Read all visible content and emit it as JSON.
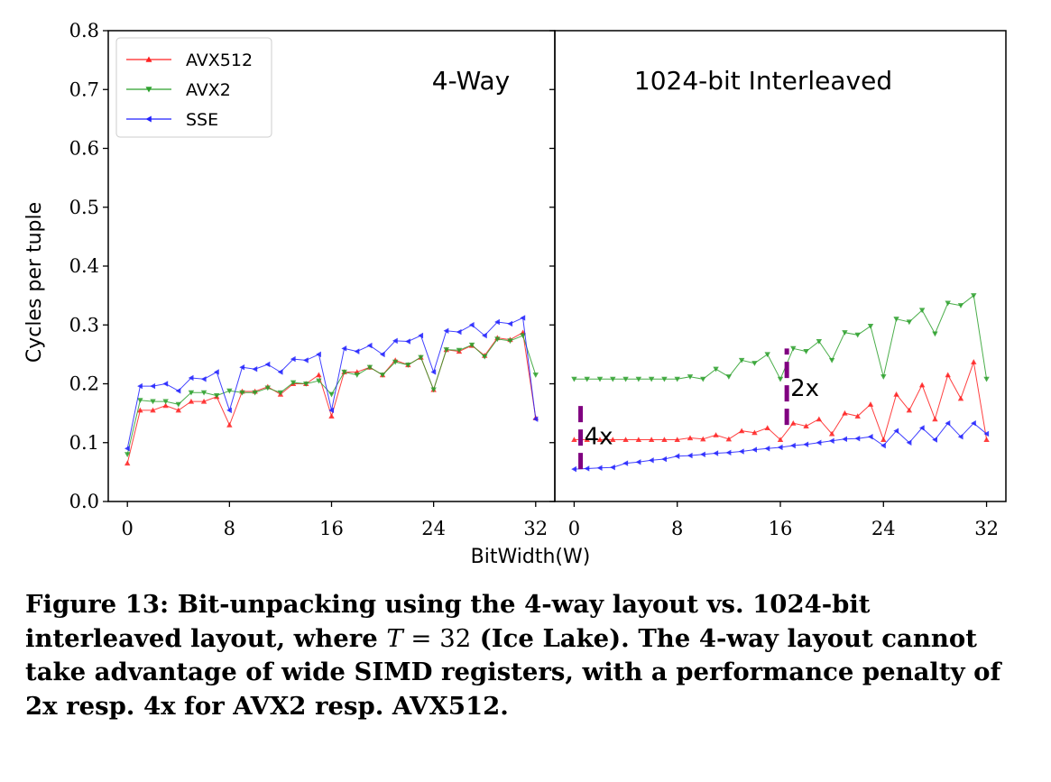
{
  "chart_data": {
    "type": "line",
    "ylabel": "Cycles per tuple",
    "xlabel": "BitWidth(W)",
    "ylim": [
      0.0,
      0.8
    ],
    "yticks": [
      "0.0",
      "0.1",
      "0.2",
      "0.3",
      "0.4",
      "0.5",
      "0.6",
      "0.7",
      "0.8"
    ],
    "xticks": [
      "0",
      "8",
      "16",
      "24",
      "32"
    ],
    "legend": {
      "placement": "upper-left",
      "entries": [
        "AVX512",
        "AVX2",
        "SSE"
      ]
    },
    "colors": {
      "AVX512": "#ff2020",
      "AVX2": "#2ca02c",
      "SSE": "#2020ff",
      "annotation": "#800080"
    },
    "panels": [
      {
        "title": "4-Way",
        "x": [
          0,
          1,
          2,
          3,
          4,
          5,
          6,
          7,
          8,
          9,
          10,
          11,
          12,
          13,
          14,
          15,
          16,
          17,
          18,
          19,
          20,
          21,
          22,
          23,
          24,
          25,
          26,
          27,
          28,
          29,
          30,
          31,
          32
        ],
        "series": [
          {
            "name": "AVX512",
            "marker": "triangle-up",
            "values": [
              0.065,
              0.155,
              0.155,
              0.163,
              0.155,
              0.17,
              0.17,
              0.178,
              0.13,
              0.187,
              0.187,
              0.195,
              0.182,
              0.2,
              0.2,
              0.215,
              0.145,
              0.22,
              0.22,
              0.228,
              0.215,
              0.24,
              0.232,
              0.245,
              0.19,
              0.258,
              0.255,
              0.265,
              0.248,
              0.278,
              0.275,
              0.287,
              0.142
            ]
          },
          {
            "name": "AVX2",
            "marker": "triangle-down",
            "values": [
              0.08,
              0.172,
              0.17,
              0.17,
              0.165,
              0.185,
              0.185,
              0.18,
              0.188,
              0.185,
              0.185,
              0.193,
              0.185,
              0.202,
              0.2,
              0.205,
              0.182,
              0.22,
              0.215,
              0.228,
              0.215,
              0.237,
              0.232,
              0.245,
              0.19,
              0.258,
              0.257,
              0.266,
              0.246,
              0.276,
              0.273,
              0.282,
              0.215
            ]
          },
          {
            "name": "SSE",
            "marker": "triangle-left",
            "values": [
              0.09,
              0.196,
              0.196,
              0.2,
              0.188,
              0.21,
              0.208,
              0.22,
              0.155,
              0.228,
              0.225,
              0.233,
              0.22,
              0.242,
              0.24,
              0.25,
              0.155,
              0.26,
              0.255,
              0.265,
              0.25,
              0.273,
              0.272,
              0.282,
              0.22,
              0.29,
              0.288,
              0.3,
              0.282,
              0.305,
              0.302,
              0.312,
              0.14
            ]
          }
        ]
      },
      {
        "title": "1024-bit Interleaved",
        "x": [
          0,
          1,
          2,
          3,
          4,
          5,
          6,
          7,
          8,
          9,
          10,
          11,
          12,
          13,
          14,
          15,
          16,
          17,
          18,
          19,
          20,
          21,
          22,
          23,
          24,
          25,
          26,
          27,
          28,
          29,
          30,
          31,
          32
        ],
        "series": [
          {
            "name": "AVX512",
            "marker": "triangle-up",
            "values": [
              0.105,
              0.105,
              0.105,
              0.105,
              0.105,
              0.105,
              0.105,
              0.105,
              0.105,
              0.108,
              0.106,
              0.113,
              0.106,
              0.12,
              0.117,
              0.125,
              0.105,
              0.133,
              0.128,
              0.14,
              0.115,
              0.15,
              0.145,
              0.165,
              0.105,
              0.182,
              0.155,
              0.198,
              0.14,
              0.215,
              0.175,
              0.237,
              0.105
            ]
          },
          {
            "name": "AVX2",
            "marker": "triangle-down",
            "values": [
              0.208,
              0.208,
              0.208,
              0.208,
              0.208,
              0.208,
              0.208,
              0.208,
              0.208,
              0.212,
              0.208,
              0.225,
              0.212,
              0.24,
              0.235,
              0.25,
              0.208,
              0.26,
              0.255,
              0.272,
              0.24,
              0.287,
              0.283,
              0.298,
              0.212,
              0.31,
              0.305,
              0.325,
              0.285,
              0.337,
              0.333,
              0.35,
              0.208
            ]
          },
          {
            "name": "SSE",
            "marker": "triangle-left",
            "values": [
              0.055,
              0.056,
              0.057,
              0.058,
              0.065,
              0.067,
              0.07,
              0.072,
              0.077,
              0.078,
              0.08,
              0.082,
              0.083,
              0.085,
              0.088,
              0.09,
              0.092,
              0.095,
              0.097,
              0.1,
              0.103,
              0.106,
              0.107,
              0.11,
              0.095,
              0.12,
              0.1,
              0.125,
              0.105,
              0.133,
              0.11,
              0.133,
              0.115
            ]
          }
        ],
        "annotations": [
          {
            "label": "4x",
            "x": 0.5,
            "y_from": 0.055,
            "y_to": 0.17
          },
          {
            "label": "2x",
            "x": 16.5,
            "y_from": 0.13,
            "y_to": 0.26
          }
        ]
      }
    ]
  },
  "caption": {
    "lead": "Figure 13: Bit-unpacking using the 4-way layout vs. 1024-bit interleaved layout, where ",
    "math_var": "T",
    "math_rest": " = 32",
    "tail": " (Ice Lake). The 4-way layout cannot take advantage of wide SIMD registers, with a performance penalty of 2x resp. 4x for AVX2 resp. AVX512."
  }
}
